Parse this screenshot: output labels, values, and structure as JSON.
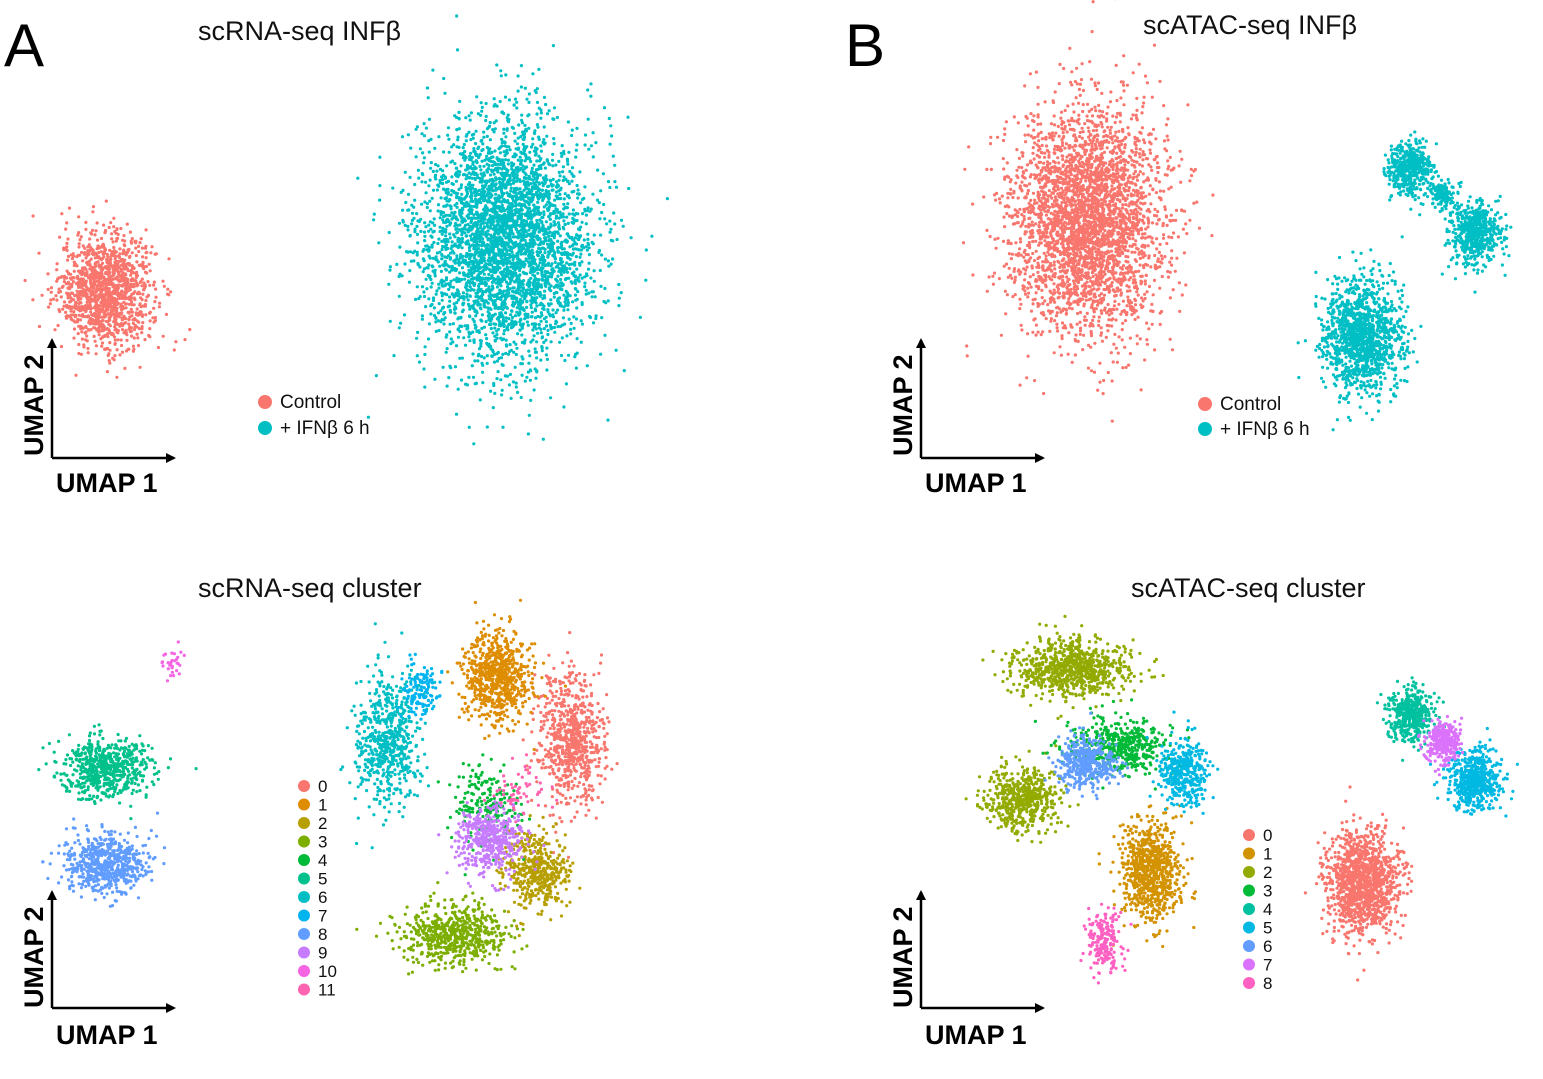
{
  "panels": [
    {
      "letter": "A"
    },
    {
      "letter": "B"
    }
  ],
  "colors": {
    "condition": {
      "Control": "#F8766D",
      "+ IFNβ 6 h": "#00BFC4"
    },
    "scrna_clusters": [
      "#F8766D",
      "#DE8C00",
      "#B79F00",
      "#7CAE00",
      "#00BA38",
      "#00C08B",
      "#00BFC4",
      "#00B4F0",
      "#619CFF",
      "#C77CFF",
      "#F564E3",
      "#FF64B0"
    ],
    "scatac_clusters": [
      "#F8766D",
      "#D39200",
      "#93AA00",
      "#00BA38",
      "#00C19F",
      "#00B9E3",
      "#619CFF",
      "#DB72FB",
      "#FF61C3"
    ]
  },
  "chart_data": [
    {
      "type": "scatter",
      "title": "scRNA-seq INFβ",
      "xlabel": "UMAP 1",
      "ylabel": "UMAP 2",
      "legend": [
        "Control",
        "+ IFNβ 6 h"
      ],
      "legend_position": "center",
      "grid": false,
      "series": [
        {
          "name": "Control",
          "clusters": [
            {
              "center": [
                -8.0,
                1.0
              ],
              "spread": [
                1.4,
                2.2
              ],
              "n": 1300
            }
          ]
        },
        {
          "name": "+ IFNβ 6 h",
          "clusters": [
            {
              "center": [
                4.0,
                3.0
              ],
              "spread": [
                2.6,
                4.5
              ],
              "n": 3800
            }
          ]
        }
      ]
    },
    {
      "type": "scatter",
      "title": "scATAC-seq INFβ",
      "xlabel": "UMAP 1",
      "ylabel": "UMAP 2",
      "legend": [
        "Control",
        "+ IFNβ 6 h"
      ],
      "legend_position": "center",
      "grid": false,
      "series": [
        {
          "name": "Control",
          "clusters": [
            {
              "center": [
                -4.0,
                3.0
              ],
              "spread": [
                2.3,
                4.2
              ],
              "n": 3400
            }
          ]
        },
        {
          "name": "+ IFNβ 6 h",
          "clusters": [
            {
              "center": [
                4.5,
                -1.5
              ],
              "spread": [
                1.2,
                2.2
              ],
              "n": 1300
            },
            {
              "center": [
                6.0,
                5.0
              ],
              "spread": [
                0.7,
                1.0
              ],
              "n": 450
            },
            {
              "center": [
                8.0,
                2.5
              ],
              "spread": [
                0.8,
                1.2
              ],
              "n": 550
            },
            {
              "center": [
                7.0,
                4.0
              ],
              "spread": [
                0.4,
                0.5
              ],
              "n": 150
            }
          ]
        }
      ]
    },
    {
      "type": "scatter",
      "title": "scRNA-seq cluster",
      "xlabel": "UMAP 1",
      "ylabel": "UMAP 2",
      "legend": [
        "0",
        "1",
        "2",
        "3",
        "4",
        "5",
        "6",
        "7",
        "8",
        "9",
        "10",
        "11"
      ],
      "legend_position": "center",
      "grid": false,
      "series": [
        {
          "name": "0",
          "clusters": [
            {
              "center": [
                6.0,
                4.0
              ],
              "spread": [
                1.0,
                2.6
              ],
              "n": 700
            }
          ]
        },
        {
          "name": "1",
          "clusters": [
            {
              "center": [
                3.8,
                6.5
              ],
              "spread": [
                1.0,
                1.8
              ],
              "n": 700
            }
          ]
        },
        {
          "name": "2",
          "clusters": [
            {
              "center": [
                5.0,
                -1.0
              ],
              "spread": [
                0.9,
                1.5
              ],
              "n": 450
            }
          ]
        },
        {
          "name": "3",
          "clusters": [
            {
              "center": [
                2.5,
                -3.5
              ],
              "spread": [
                1.6,
                1.2
              ],
              "n": 600
            }
          ]
        },
        {
          "name": "4",
          "clusters": [
            {
              "center": [
                3.5,
                1.5
              ],
              "spread": [
                1.0,
                1.5
              ],
              "n": 200
            }
          ]
        },
        {
          "name": "5",
          "clusters": [
            {
              "center": [
                -8.0,
                3.0
              ],
              "spread": [
                1.3,
                1.2
              ],
              "n": 600
            }
          ]
        },
        {
          "name": "6",
          "clusters": [
            {
              "center": [
                0.5,
                4.0
              ],
              "spread": [
                1.0,
                2.6
              ],
              "n": 600
            }
          ]
        },
        {
          "name": "7",
          "clusters": [
            {
              "center": [
                1.5,
                6.0
              ],
              "spread": [
                0.6,
                1.0
              ],
              "n": 120
            }
          ]
        },
        {
          "name": "8",
          "clusters": [
            {
              "center": [
                -8.0,
                -0.8
              ],
              "spread": [
                1.3,
                1.2
              ],
              "n": 600
            }
          ]
        },
        {
          "name": "9",
          "clusters": [
            {
              "center": [
                3.6,
                0.2
              ],
              "spread": [
                1.0,
                1.3
              ],
              "n": 450
            }
          ]
        },
        {
          "name": "10",
          "clusters": [
            {
              "center": [
                -6.0,
                7.0
              ],
              "spread": [
                0.4,
                0.6
              ],
              "n": 30
            }
          ]
        },
        {
          "name": "11",
          "clusters": [
            {
              "center": [
                4.5,
                2.0
              ],
              "spread": [
                0.8,
                1.0
              ],
              "n": 60
            }
          ]
        }
      ]
    },
    {
      "type": "scatter",
      "title": "scATAC-seq cluster",
      "xlabel": "UMAP 1",
      "ylabel": "UMAP 2",
      "legend": [
        "0",
        "1",
        "2",
        "3",
        "4",
        "5",
        "6",
        "7",
        "8"
      ],
      "legend_position": "center",
      "grid": false,
      "series": [
        {
          "name": "0",
          "clusters": [
            {
              "center": [
                4.5,
                -1.5
              ],
              "spread": [
                1.1,
                2.0
              ],
              "n": 1300
            }
          ]
        },
        {
          "name": "1",
          "clusters": [
            {
              "center": [
                -2.0,
                -1.0
              ],
              "spread": [
                0.9,
                1.9
              ],
              "n": 800
            }
          ]
        },
        {
          "name": "2",
          "clusters": [
            {
              "center": [
                -4.5,
                6.8
              ],
              "spread": [
                1.8,
                1.1
              ],
              "n": 800
            },
            {
              "center": [
                -6.0,
                1.8
              ],
              "spread": [
                1.1,
                1.2
              ],
              "n": 550
            }
          ]
        },
        {
          "name": "3",
          "clusters": [
            {
              "center": [
                -3.0,
                3.8
              ],
              "spread": [
                1.6,
                1.1
              ],
              "n": 500
            }
          ]
        },
        {
          "name": "4",
          "clusters": [
            {
              "center": [
                6.0,
                5.0
              ],
              "spread": [
                0.7,
                1.0
              ],
              "n": 450
            }
          ]
        },
        {
          "name": "5",
          "clusters": [
            {
              "center": [
                -1.0,
                2.8
              ],
              "spread": [
                0.7,
                1.2
              ],
              "n": 400
            },
            {
              "center": [
                8.0,
                2.5
              ],
              "spread": [
                0.8,
                1.2
              ],
              "n": 550
            }
          ]
        },
        {
          "name": "6",
          "clusters": [
            {
              "center": [
                -4.0,
                3.2
              ],
              "spread": [
                0.9,
                1.0
              ],
              "n": 400
            }
          ]
        },
        {
          "name": "7",
          "clusters": [
            {
              "center": [
                7.0,
                4.0
              ],
              "spread": [
                0.5,
                0.8
              ],
              "n": 300
            }
          ]
        },
        {
          "name": "8",
          "clusters": [
            {
              "center": [
                -3.5,
                -3.8
              ],
              "spread": [
                0.5,
                1.3
              ],
              "n": 200
            }
          ]
        }
      ]
    }
  ]
}
